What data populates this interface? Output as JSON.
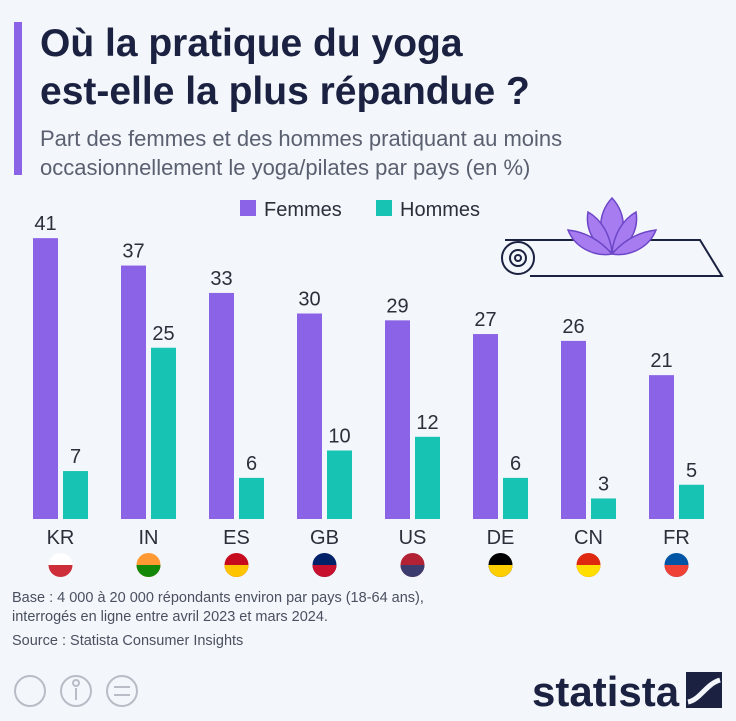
{
  "chart_data": {
    "type": "bar",
    "title_lines": [
      "Où la pratique du yoga",
      "est-elle la plus répandue ?"
    ],
    "subtitle_lines": [
      "Part des femmes et des hommes pratiquant au moins",
      "occasionnellement le yoga/pilates par pays (en %)"
    ],
    "categories": [
      "KR",
      "IN",
      "ES",
      "GB",
      "US",
      "DE",
      "CN",
      "FR"
    ],
    "series": [
      {
        "name": "Femmes",
        "color": "#8b63e6",
        "values": [
          41,
          37,
          33,
          30,
          29,
          27,
          26,
          21
        ]
      },
      {
        "name": "Hommes",
        "color": "#17c3b2",
        "values": [
          7,
          25,
          6,
          10,
          12,
          6,
          3,
          5
        ]
      }
    ],
    "footnote_lines": [
      "Base : 4 000 à 20 000 répondants environ par pays (18-64 ans),",
      "interrogés en ligne entre avril 2023 et mars 2024."
    ],
    "source": "Source : Statista Consumer Insights",
    "brand": "statista"
  }
}
